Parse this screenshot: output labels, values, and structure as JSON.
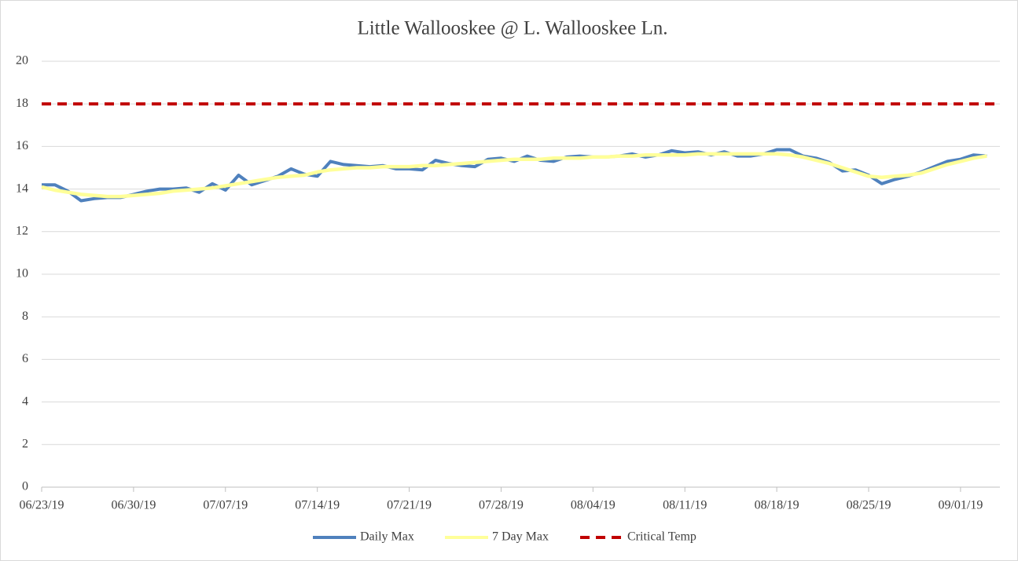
{
  "chart_data": {
    "type": "line",
    "title": "Little Wallooskee @ L. Wallooskee Ln.",
    "categories": [
      "06/23/19",
      null,
      null,
      null,
      null,
      null,
      null,
      "06/30/19",
      null,
      null,
      null,
      null,
      null,
      null,
      "07/07/19",
      null,
      null,
      null,
      null,
      null,
      null,
      "07/14/19",
      null,
      null,
      null,
      null,
      null,
      null,
      "07/21/19",
      null,
      null,
      null,
      null,
      null,
      null,
      "07/28/19",
      null,
      null,
      null,
      null,
      null,
      null,
      "08/04/19",
      null,
      null,
      null,
      null,
      null,
      null,
      "08/11/19",
      null,
      null,
      null,
      null,
      null,
      null,
      "08/18/19",
      null,
      null,
      null,
      null,
      null,
      null,
      "08/25/19",
      null,
      null,
      null,
      null,
      null,
      null,
      "09/01/19",
      null,
      null
    ],
    "series": [
      {
        "name": "Daily Max",
        "color": "#4f81bd",
        "values": [
          14.2,
          14.2,
          13.9,
          13.45,
          13.55,
          13.6,
          13.6,
          13.75,
          13.9,
          14.0,
          14.0,
          14.05,
          13.85,
          14.25,
          13.95,
          14.65,
          14.2,
          14.4,
          14.6,
          14.95,
          14.7,
          14.6,
          15.3,
          15.15,
          15.1,
          15.05,
          15.1,
          14.95,
          14.95,
          14.9,
          15.35,
          15.2,
          15.1,
          15.05,
          15.4,
          15.45,
          15.3,
          15.55,
          15.35,
          15.3,
          15.5,
          15.55,
          15.5,
          15.5,
          15.55,
          15.65,
          15.5,
          15.6,
          15.8,
          15.7,
          15.75,
          15.6,
          15.75,
          15.55,
          15.55,
          15.65,
          15.85,
          15.85,
          15.55,
          15.45,
          15.25,
          14.85,
          14.9,
          14.65,
          14.25,
          14.45,
          14.6,
          14.8,
          15.05,
          15.3,
          15.4,
          15.6,
          15.55
        ]
      },
      {
        "name": "7 Day Max",
        "color": "#ffff99",
        "values": [
          14.1,
          13.95,
          13.85,
          13.75,
          13.7,
          13.65,
          13.65,
          13.7,
          13.75,
          13.8,
          13.9,
          13.95,
          14.0,
          14.05,
          14.15,
          14.25,
          14.35,
          14.45,
          14.55,
          14.6,
          14.65,
          14.8,
          14.9,
          14.95,
          15.0,
          15.0,
          15.05,
          15.05,
          15.05,
          15.1,
          15.1,
          15.15,
          15.2,
          15.25,
          15.3,
          15.35,
          15.4,
          15.4,
          15.4,
          15.45,
          15.45,
          15.45,
          15.5,
          15.5,
          15.55,
          15.55,
          15.6,
          15.6,
          15.6,
          15.6,
          15.65,
          15.65,
          15.65,
          15.65,
          15.65,
          15.65,
          15.65,
          15.6,
          15.5,
          15.35,
          15.2,
          15.0,
          14.8,
          14.6,
          14.55,
          14.6,
          14.65,
          14.75,
          14.95,
          15.15,
          15.3,
          15.45,
          15.55
        ]
      }
    ],
    "threshold": {
      "name": "Critical Temp",
      "color": "#c00000",
      "value": 18
    },
    "ylim": [
      0,
      20
    ],
    "yticks": [
      0,
      2,
      4,
      6,
      8,
      10,
      12,
      14,
      16,
      18,
      20
    ],
    "grid": true,
    "legend": "bottom"
  }
}
